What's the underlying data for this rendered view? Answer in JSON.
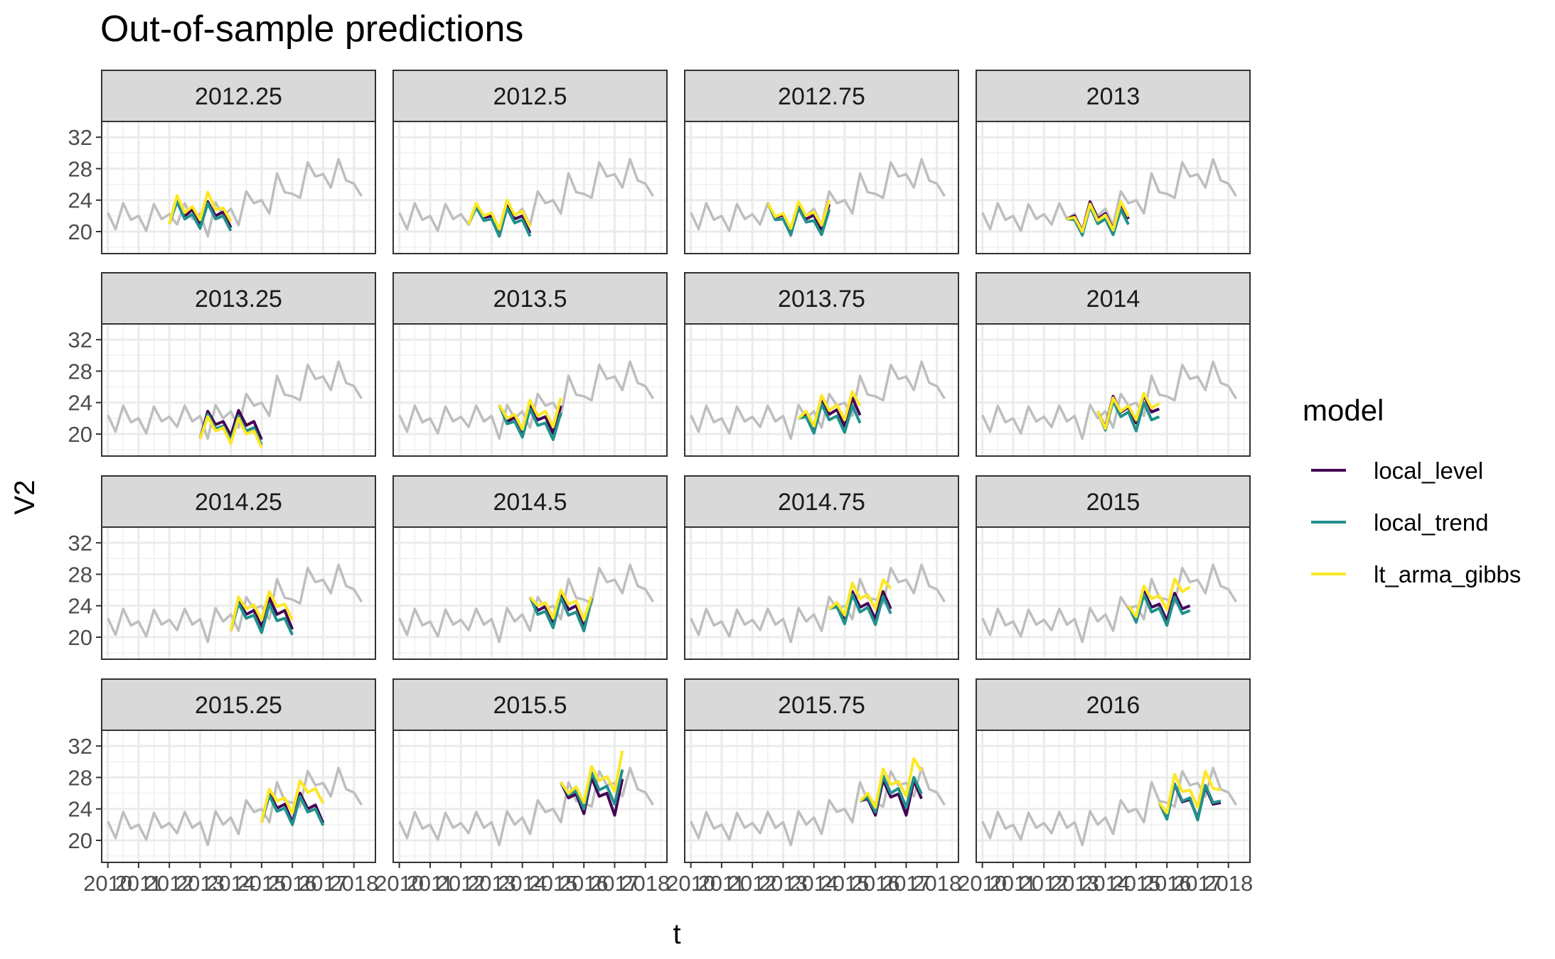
{
  "chart_data": {
    "type": "line",
    "title": "Out-of-sample predictions",
    "xlabel": "t",
    "ylabel": "V2",
    "ylim": [
      17.2,
      34.0
    ],
    "xlim": [
      2009.8,
      2018.7
    ],
    "y_ticks": [
      20,
      24,
      28,
      32
    ],
    "y_tick_labels": [
      "20",
      "24",
      "28",
      "32"
    ],
    "x_ticks": [
      2010,
      2011,
      2012,
      2013,
      2014,
      2015,
      2016,
      2017,
      2018
    ],
    "x_tick_labels": [
      "2010",
      "2011",
      "2012",
      "2013",
      "2014",
      "2015",
      "2016",
      "2017",
      "2018"
    ],
    "grid": true,
    "legend_placement": "right",
    "legend_title": "model",
    "series_meta": [
      {
        "name": "local_level",
        "color": "#440154"
      },
      {
        "name": "local_trend",
        "color": "#21908C"
      },
      {
        "name": "lt_arma_gibbs",
        "color": "#FDE725"
      }
    ],
    "actual_color": "#BEBEBE",
    "actual": {
      "x": [
        2010,
        2010.25,
        2010.5,
        2010.75,
        2011,
        2011.25,
        2011.5,
        2011.75,
        2012,
        2012.25,
        2012.5,
        2012.75,
        2013,
        2013.25,
        2013.5,
        2013.75,
        2014,
        2014.25,
        2014.5,
        2014.75,
        2015,
        2015.25,
        2015.5,
        2015.75,
        2016,
        2016.25,
        2016.5,
        2016.75,
        2017,
        2017.25,
        2017.5,
        2017.75,
        2018,
        2018.25
      ],
      "y": [
        22.4,
        20.3,
        23.6,
        21.5,
        22.0,
        20.1,
        23.5,
        21.6,
        22.2,
        20.9,
        23.6,
        21.6,
        22.3,
        19.4,
        23.7,
        22.0,
        22.9,
        20.8,
        25.1,
        23.6,
        24.0,
        22.3,
        27.4,
        25.0,
        24.8,
        24.3,
        28.8,
        27.0,
        27.3,
        25.6,
        29.2,
        26.5,
        26.1,
        24.5
      ]
    },
    "panels": [
      {
        "label": "2012.25",
        "x": [
          2012.0,
          2012.25,
          2012.5,
          2012.75,
          2013.0,
          2013.25,
          2013.5,
          2013.75,
          2014.0
        ],
        "series": [
          {
            "name": "local_level",
            "values": [
              21.0,
              24.0,
              22.0,
              22.8,
              20.8,
              23.8,
              22.0,
              22.5,
              20.5
            ]
          },
          {
            "name": "local_trend",
            "values": [
              21.0,
              23.8,
              21.6,
              22.2,
              20.4,
              23.6,
              21.6,
              22.0,
              20.1
            ]
          },
          {
            "name": "lt_arma_gibbs",
            "values": [
              21.0,
              24.6,
              22.4,
              23.2,
              21.5,
              25.0,
              22.8,
              23.0,
              21.3
            ]
          }
        ]
      },
      {
        "label": "2012.5",
        "x": [
          2012.25,
          2012.5,
          2012.75,
          2013.0,
          2013.25,
          2013.5,
          2013.75,
          2014.0,
          2014.25
        ],
        "series": [
          {
            "name": "local_level",
            "values": [
              20.9,
              23.4,
              21.8,
              22.0,
              19.8,
              23.5,
              21.6,
              22.0,
              19.8
            ]
          },
          {
            "name": "local_trend",
            "values": [
              20.9,
              23.1,
              21.4,
              21.6,
              19.4,
              23.0,
              21.1,
              21.5,
              19.4
            ]
          },
          {
            "name": "lt_arma_gibbs",
            "values": [
              20.9,
              23.6,
              22.0,
              22.4,
              20.3,
              24.0,
              22.1,
              22.6,
              20.6
            ]
          }
        ]
      },
      {
        "label": "2012.75",
        "x": [
          2012.5,
          2012.75,
          2013.0,
          2013.25,
          2013.5,
          2013.75,
          2014.0,
          2014.25,
          2014.5
        ],
        "series": [
          {
            "name": "local_level",
            "values": [
              23.6,
              21.8,
              22.1,
              20.1,
              23.5,
              21.6,
              22.1,
              20.3,
              23.5
            ]
          },
          {
            "name": "local_trend",
            "values": [
              23.6,
              21.5,
              21.6,
              19.6,
              23.0,
              21.2,
              21.4,
              19.6,
              22.8
            ]
          },
          {
            "name": "lt_arma_gibbs",
            "values": [
              23.6,
              21.9,
              22.3,
              20.4,
              23.8,
              22.0,
              22.5,
              20.8,
              24.0
            ]
          }
        ]
      },
      {
        "label": "2013",
        "x": [
          2012.75,
          2013.0,
          2013.25,
          2013.5,
          2013.75,
          2014.0,
          2014.25,
          2014.5,
          2014.75
        ],
        "series": [
          {
            "name": "local_level",
            "values": [
              21.6,
              22.0,
              20.1,
              23.8,
              21.6,
              22.3,
              20.3,
              23.6,
              21.6
            ]
          },
          {
            "name": "local_trend",
            "values": [
              21.6,
              21.5,
              19.6,
              23.2,
              21.0,
              21.6,
              19.6,
              22.8,
              20.9
            ]
          },
          {
            "name": "lt_arma_gibbs",
            "values": [
              21.6,
              21.8,
              20.0,
              23.5,
              21.4,
              22.1,
              20.2,
              23.8,
              21.9
            ]
          }
        ]
      },
      {
        "label": "2013.25",
        "x": [
          2013.0,
          2013.25,
          2013.5,
          2013.75,
          2014.0,
          2014.25,
          2014.5,
          2014.75,
          2015.0
        ],
        "series": [
          {
            "name": "local_level",
            "values": [
              19.4,
              22.9,
              21.2,
              21.6,
              19.8,
              23.0,
              21.1,
              21.6,
              19.3
            ]
          },
          {
            "name": "local_trend",
            "values": [
              19.4,
              22.5,
              20.7,
              21.0,
              19.2,
              22.3,
              20.4,
              20.8,
              18.6
            ]
          },
          {
            "name": "lt_arma_gibbs",
            "values": [
              19.4,
              22.2,
              20.4,
              20.8,
              18.8,
              22.0,
              20.0,
              20.4,
              18.3
            ]
          }
        ]
      },
      {
        "label": "2013.5",
        "x": [
          2013.25,
          2013.5,
          2013.75,
          2014.0,
          2014.25,
          2014.5,
          2014.75,
          2015.0,
          2015.25
        ],
        "series": [
          {
            "name": "local_level",
            "values": [
              23.7,
              21.6,
              22.1,
              20.2,
              23.8,
              21.8,
              22.2,
              20.1,
              23.6
            ]
          },
          {
            "name": "local_trend",
            "values": [
              23.7,
              21.3,
              21.6,
              19.6,
              23.2,
              21.1,
              21.4,
              19.3,
              22.7
            ]
          },
          {
            "name": "lt_arma_gibbs",
            "values": [
              23.7,
              22.0,
              22.5,
              20.6,
              24.3,
              22.3,
              22.9,
              20.9,
              24.6
            ]
          }
        ]
      },
      {
        "label": "2013.75",
        "x": [
          2013.5,
          2013.75,
          2014.0,
          2014.25,
          2014.5,
          2014.75,
          2015.0,
          2015.25,
          2015.5
        ],
        "series": [
          {
            "name": "local_level",
            "values": [
              22.0,
              22.6,
              20.6,
              24.4,
              22.5,
              23.1,
              21.0,
              24.6,
              22.4
            ]
          },
          {
            "name": "local_trend",
            "values": [
              22.0,
              22.2,
              20.1,
              23.8,
              21.8,
              22.3,
              20.2,
              23.6,
              21.4
            ]
          },
          {
            "name": "lt_arma_gibbs",
            "values": [
              22.0,
              22.9,
              21.0,
              24.9,
              23.0,
              23.7,
              21.8,
              25.4,
              23.6
            ]
          }
        ]
      },
      {
        "label": "2014",
        "x": [
          2013.75,
          2014.0,
          2014.25,
          2014.5,
          2014.75,
          2015.0,
          2015.25,
          2015.5,
          2015.75
        ],
        "series": [
          {
            "name": "local_level",
            "values": [
              22.9,
              20.8,
              24.8,
              22.8,
              23.4,
              21.4,
              25.0,
              22.8,
              23.2
            ]
          },
          {
            "name": "local_trend",
            "values": [
              22.9,
              20.5,
              24.2,
              22.2,
              22.8,
              20.4,
              24.0,
              21.8,
              22.2
            ]
          },
          {
            "name": "lt_arma_gibbs",
            "values": [
              22.9,
              20.7,
              24.6,
              22.9,
              23.6,
              21.8,
              25.2,
              23.3,
              23.9
            ]
          }
        ]
      },
      {
        "label": "2014.25",
        "x": [
          2014.0,
          2014.25,
          2014.5,
          2014.75,
          2015.0,
          2015.25,
          2015.5,
          2015.75,
          2016.0
        ],
        "series": [
          {
            "name": "local_level",
            "values": [
              20.8,
              24.6,
              22.9,
              23.4,
              21.3,
              25.0,
              22.9,
              23.4,
              21.0
            ]
          },
          {
            "name": "local_trend",
            "values": [
              20.8,
              24.3,
              22.4,
              22.8,
              20.6,
              24.2,
              22.1,
              22.4,
              20.3
            ]
          },
          {
            "name": "lt_arma_gibbs",
            "values": [
              20.8,
              25.1,
              23.6,
              24.1,
              22.2,
              25.8,
              23.9,
              24.2,
              22.2
            ]
          }
        ]
      },
      {
        "label": "2014.5",
        "x": [
          2014.25,
          2014.5,
          2014.75,
          2015.0,
          2015.25,
          2015.5,
          2015.75,
          2016.0,
          2016.25
        ],
        "series": [
          {
            "name": "local_level",
            "values": [
              25.1,
              23.4,
              23.9,
              21.8,
              25.6,
              23.5,
              24.0,
              21.2,
              25.0
            ]
          },
          {
            "name": "local_trend",
            "values": [
              25.1,
              22.9,
              23.3,
              21.2,
              25.0,
              22.8,
              23.2,
              20.8,
              24.8
            ]
          },
          {
            "name": "lt_arma_gibbs",
            "values": [
              25.1,
              24.0,
              24.4,
              22.4,
              26.0,
              24.2,
              24.6,
              22.2,
              25.2
            ]
          }
        ]
      },
      {
        "label": "2014.75",
        "x": [
          2014.5,
          2014.75,
          2015.0,
          2015.25,
          2015.5,
          2015.75,
          2016.0,
          2016.25,
          2016.5
        ],
        "series": [
          {
            "name": "local_level",
            "values": [
              23.6,
              24.2,
              22.2,
              25.8,
              23.8,
              24.3,
              22.3,
              25.8,
              23.6
            ]
          },
          {
            "name": "local_trend",
            "values": [
              23.6,
              23.9,
              21.7,
              25.4,
              23.2,
              23.8,
              21.6,
              25.2,
              23.0
            ]
          },
          {
            "name": "lt_arma_gibbs",
            "values": [
              23.6,
              24.4,
              22.8,
              26.9,
              24.9,
              25.4,
              23.6,
              27.3,
              26.2
            ]
          }
        ]
      },
      {
        "label": "2015",
        "x": [
          2014.75,
          2015.0,
          2015.25,
          2015.5,
          2015.75,
          2016.0,
          2016.25,
          2016.5,
          2016.75
        ],
        "series": [
          {
            "name": "local_level",
            "values": [
              24.0,
              22.3,
              25.8,
              23.8,
              24.2,
              22.1,
              25.6,
              23.6,
              24.0
            ]
          },
          {
            "name": "local_trend",
            "values": [
              24.0,
              21.9,
              25.4,
              23.2,
              23.7,
              21.5,
              25.1,
              23.0,
              23.4
            ]
          },
          {
            "name": "lt_arma_gibbs",
            "values": [
              24.0,
              22.6,
              26.5,
              24.9,
              25.3,
              23.5,
              27.4,
              25.8,
              26.4
            ]
          }
        ]
      },
      {
        "label": "2015.25",
        "x": [
          2015.0,
          2015.25,
          2015.5,
          2015.75,
          2016.0,
          2016.25,
          2016.5,
          2016.75,
          2017.0
        ],
        "series": [
          {
            "name": "local_level",
            "values": [
              22.3,
              26.0,
              24.1,
              24.6,
              22.3,
              26.0,
              24.0,
              24.5,
              22.2
            ]
          },
          {
            "name": "local_trend",
            "values": [
              22.3,
              25.7,
              23.7,
              24.1,
              22.0,
              25.6,
              23.6,
              24.0,
              21.9
            ]
          },
          {
            "name": "lt_arma_gibbs",
            "values": [
              22.3,
              26.5,
              25.0,
              25.4,
              23.5,
              27.6,
              26.1,
              26.6,
              24.7
            ]
          }
        ]
      },
      {
        "label": "2015.5",
        "x": [
          2015.25,
          2015.5,
          2015.75,
          2016.0,
          2016.25,
          2016.5,
          2016.75,
          2017.0,
          2017.25
        ],
        "series": [
          {
            "name": "local_level",
            "values": [
              27.4,
              25.4,
              25.9,
              23.4,
              28.0,
              25.6,
              26.0,
              23.2,
              27.8
            ]
          },
          {
            "name": "local_trend",
            "values": [
              27.4,
              25.8,
              26.3,
              24.0,
              28.6,
              26.4,
              26.9,
              24.6,
              29.0
            ]
          },
          {
            "name": "lt_arma_gibbs",
            "values": [
              27.4,
              26.0,
              26.8,
              24.8,
              29.4,
              27.6,
              28.1,
              26.2,
              31.4
            ]
          }
        ]
      },
      {
        "label": "2015.75",
        "x": [
          2015.5,
          2015.75,
          2016.0,
          2016.25,
          2016.5,
          2016.75,
          2017.0,
          2017.25,
          2017.5
        ],
        "series": [
          {
            "name": "local_level",
            "values": [
              25.0,
              25.3,
              23.2,
              27.7,
              25.5,
              25.9,
              23.2,
              27.6,
              25.3
            ]
          },
          {
            "name": "local_trend",
            "values": [
              25.0,
              25.5,
              23.6,
              28.2,
              26.0,
              26.6,
              24.2,
              28.0,
              25.9
            ]
          },
          {
            "name": "lt_arma_gibbs",
            "values": [
              25.0,
              26.0,
              24.2,
              29.1,
              27.1,
              27.5,
              25.6,
              30.4,
              28.8
            ]
          }
        ]
      },
      {
        "label": "2016",
        "x": [
          2015.75,
          2016.0,
          2016.25,
          2016.5,
          2016.75,
          2017.0,
          2017.25,
          2017.5,
          2017.75
        ],
        "series": [
          {
            "name": "local_level",
            "values": [
              24.8,
              23.0,
              27.1,
              24.9,
              25.2,
              22.8,
              26.8,
              24.6,
              24.8
            ]
          },
          {
            "name": "local_trend",
            "values": [
              24.8,
              22.7,
              27.2,
              25.0,
              25.4,
              22.6,
              27.0,
              24.8,
              25.0
            ]
          },
          {
            "name": "lt_arma_gibbs",
            "values": [
              24.8,
              23.5,
              28.4,
              26.2,
              26.4,
              24.2,
              28.8,
              26.6,
              26.4
            ]
          }
        ]
      }
    ]
  }
}
